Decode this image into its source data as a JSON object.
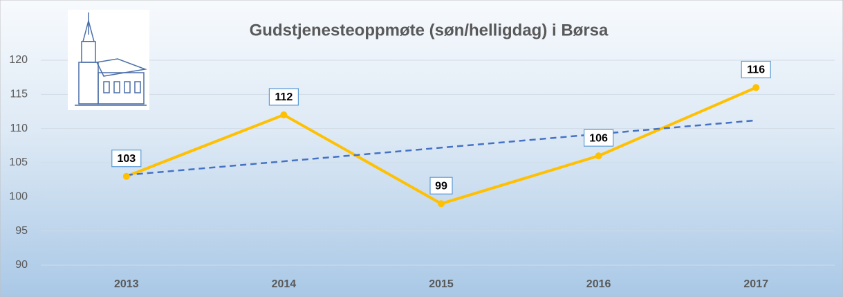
{
  "chart_data": {
    "type": "line",
    "title": "Gudstjenesteoppmøte (søn/helligdag) i Børsa",
    "categories": [
      "2013",
      "2014",
      "2015",
      "2016",
      "2017"
    ],
    "values": [
      103,
      112,
      99,
      106,
      116
    ],
    "color": "#ffc000",
    "trendline": {
      "color": "#4472c4",
      "values": [
        103.2,
        105.2,
        107.2,
        109.2,
        111.2
      ]
    },
    "ylim": [
      90,
      120
    ],
    "yticks": [
      90,
      95,
      100,
      105,
      110,
      115,
      120
    ],
    "grid": true
  }
}
